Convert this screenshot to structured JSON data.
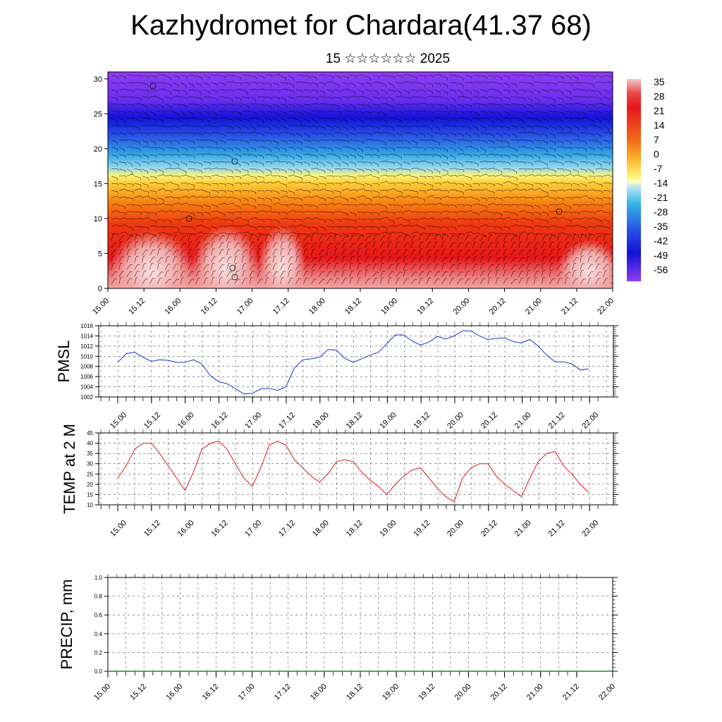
{
  "title": "Kazhydromet for Chardara(41.37 68)",
  "subtitle": "15 ☆☆☆☆☆☆ 2025",
  "chart_data": [
    {
      "type": "heatmap",
      "name": "cross-section",
      "title": "",
      "x_ticks": [
        "15.00",
        "15.12",
        "16.00",
        "16.12",
        "17.00",
        "17.12",
        "18.00",
        "18.12",
        "19.00",
        "19.12",
        "20.00",
        "20.12",
        "21.00",
        "21.12",
        "22.00"
      ],
      "y_ticks": [
        0,
        5,
        10,
        15,
        20,
        25,
        30
      ],
      "ylim": [
        0,
        31
      ],
      "colorbar_labels": [
        "35",
        "28",
        "21",
        "14",
        "7",
        "0",
        "-7",
        "-14",
        "-21",
        "-28",
        "-35",
        "-42",
        "-49",
        "-56"
      ],
      "colors": {
        "hot": "#f4a0a0",
        "red": "#e8161b",
        "orange": "#f97d10",
        "yellow": "#fde34a",
        "cyan": "#3cb7e6",
        "blue": "#1a1ae0",
        "violet": "#8f3cf2"
      }
    },
    {
      "type": "line",
      "name": "PMSL",
      "ylabel": "PMSL",
      "x_ticks": [
        "15.00",
        "15.12",
        "16.00",
        "16.12",
        "17.00",
        "17.12",
        "18.00",
        "18.12",
        "19.00",
        "19.12",
        "20.00",
        "20.12",
        "21.00",
        "21.12",
        "22.00"
      ],
      "y_ticks": [
        "1002",
        "1004",
        "1006",
        "1008",
        "1010",
        "1012",
        "1014",
        "1016"
      ],
      "ylim": [
        1002,
        1016
      ],
      "color": "#1e2fd6",
      "values": [
        1008.8,
        1010.5,
        1010.8,
        1009.8,
        1009.0,
        1009.3,
        1009.2,
        1008.8,
        1008.8,
        1009.3,
        1008.5,
        1006.2,
        1005.0,
        1004.6,
        1003.6,
        1002.6,
        1002.7,
        1003.6,
        1003.7,
        1003.3,
        1004.0,
        1007.7,
        1009.3,
        1009.5,
        1009.8,
        1011.3,
        1011.2,
        1009.6,
        1008.8,
        1009.5,
        1010.2,
        1010.8,
        1012.5,
        1014.2,
        1014.2,
        1013.0,
        1012.2,
        1012.8,
        1013.9,
        1013.4,
        1014.0,
        1015.0,
        1015.0,
        1014.0,
        1013.3,
        1013.5,
        1013.6,
        1012.9,
        1012.6,
        1013.3,
        1012.0,
        1010.2,
        1008.9,
        1008.9,
        1008.5,
        1007.3,
        1007.5
      ]
    },
    {
      "type": "line",
      "name": "TEMP at 2 M",
      "ylabel": "TEMP at 2 M",
      "x_ticks": [
        "15.00",
        "15.12",
        "16.00",
        "16.12",
        "17.00",
        "17.12",
        "18.00",
        "18.12",
        "19.00",
        "19.12",
        "20.00",
        "20.12",
        "21.00",
        "21.12",
        "22.00"
      ],
      "y_ticks": [
        "10",
        "15",
        "20",
        "25",
        "30",
        "35",
        "40",
        "45"
      ],
      "ylim": [
        10,
        45
      ],
      "color": "#e21a1a",
      "values": [
        23,
        29,
        37,
        40,
        40,
        35,
        29,
        23,
        17,
        26,
        37,
        40,
        41,
        37,
        30,
        23,
        19,
        28,
        39,
        41,
        39,
        32,
        28,
        24,
        21,
        25,
        31,
        32,
        31,
        26,
        22,
        19,
        15,
        20,
        24,
        27,
        28,
        23,
        18,
        14,
        11.5,
        23,
        28,
        30,
        30,
        24,
        20,
        17,
        14,
        23,
        31,
        35,
        36,
        29,
        25,
        20,
        16
      ]
    },
    {
      "type": "bar",
      "name": "PRECIP, mm",
      "ylabel": "PRECIP, mm",
      "x_ticks": [
        "15.00",
        "15.12",
        "16.00",
        "16.12",
        "17.00",
        "17.12",
        "18.00",
        "18.12",
        "19.00",
        "19.12",
        "20.00",
        "20.12",
        "21.00",
        "21.12",
        "22.00"
      ],
      "y_ticks": [
        "0.0",
        "0.2",
        "0.4",
        "0.6",
        "0.8",
        "1.0"
      ],
      "ylim": [
        0.0,
        1.0
      ],
      "color": "#1a8a1a",
      "values": [
        0,
        0,
        0,
        0,
        0,
        0,
        0,
        0,
        0,
        0,
        0,
        0,
        0,
        0,
        0,
        0,
        0,
        0,
        0,
        0,
        0,
        0,
        0,
        0,
        0,
        0,
        0,
        0,
        0,
        0,
        0,
        0,
        0,
        0,
        0,
        0,
        0,
        0,
        0,
        0,
        0,
        0,
        0,
        0,
        0,
        0,
        0,
        0,
        0,
        0,
        0,
        0,
        0,
        0,
        0,
        0,
        0
      ]
    }
  ]
}
